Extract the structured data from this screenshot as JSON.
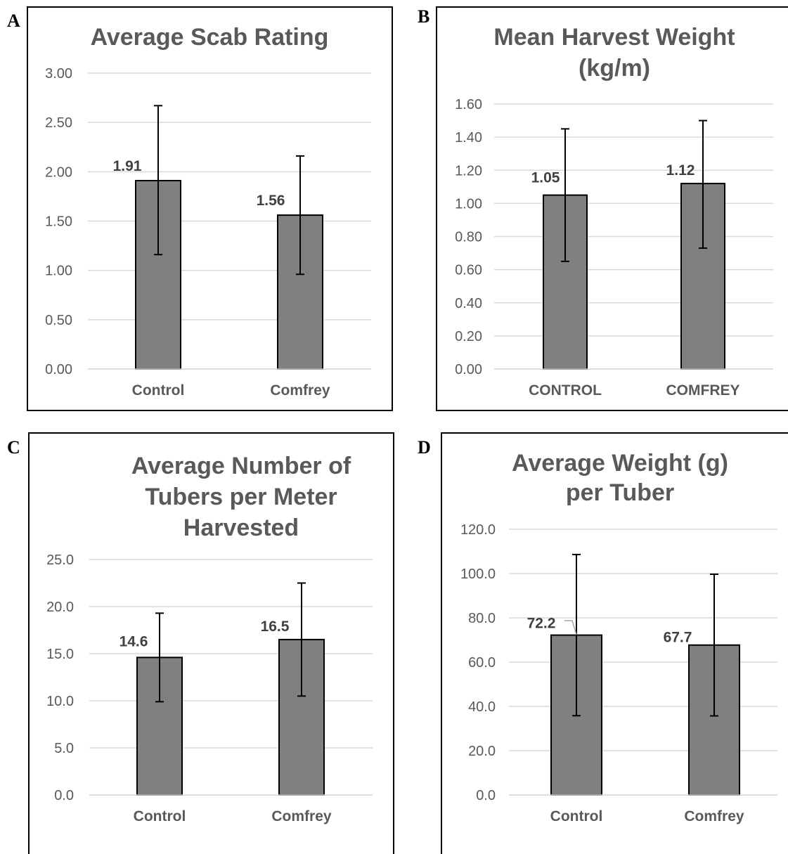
{
  "panels": [
    {
      "letter": "A"
    },
    {
      "letter": "B"
    },
    {
      "letter": "C"
    },
    {
      "letter": "D"
    }
  ],
  "colors": {
    "bar_fill": "#808080",
    "bar_stroke": "#000000",
    "grid": "#d9d9d9",
    "text": "#595959",
    "value_label": "#404040"
  },
  "chart_data": [
    {
      "type": "bar",
      "panel": "A",
      "title_lines": [
        "Average Scab Rating"
      ],
      "categories": [
        "Control",
        "Comfrey"
      ],
      "values": [
        1.91,
        1.56
      ],
      "error_low": [
        1.16,
        0.96
      ],
      "error_high": [
        2.67,
        2.16
      ],
      "value_labels": [
        "1.91",
        "1.56"
      ],
      "yticks": [
        "0.00",
        "0.50",
        "1.00",
        "1.50",
        "2.00",
        "2.50",
        "3.00"
      ],
      "ylim": [
        0,
        3
      ],
      "grid": true,
      "legend": "none"
    },
    {
      "type": "bar",
      "panel": "B",
      "title_lines": [
        "Mean Harvest Weight",
        "(kg/m)"
      ],
      "categories": [
        "CONTROL",
        "COMFREY"
      ],
      "values": [
        1.05,
        1.12
      ],
      "error_low": [
        0.65,
        0.73
      ],
      "error_high": [
        1.45,
        1.5
      ],
      "value_labels": [
        "1.05",
        "1.12"
      ],
      "yticks": [
        "0.00",
        "0.20",
        "0.40",
        "0.60",
        "0.80",
        "1.00",
        "1.20",
        "1.40",
        "1.60"
      ],
      "ylim": [
        0,
        1.6
      ],
      "grid": true,
      "legend": "none"
    },
    {
      "type": "bar",
      "panel": "C",
      "title_lines": [
        "Average Number of",
        "Tubers per Meter",
        "Harvested"
      ],
      "categories": [
        "Control",
        "Comfrey"
      ],
      "values": [
        14.6,
        16.5
      ],
      "error_low": [
        9.9,
        10.5
      ],
      "error_high": [
        19.3,
        22.5
      ],
      "value_labels": [
        "14.6",
        "16.5"
      ],
      "yticks": [
        "0.0",
        "5.0",
        "10.0",
        "15.0",
        "20.0",
        "25.0"
      ],
      "ylim": [
        0,
        25
      ],
      "grid": true,
      "legend": "none"
    },
    {
      "type": "bar",
      "panel": "D",
      "title_lines": [
        "Average Weight (g)",
        "per Tuber"
      ],
      "categories": [
        "Control",
        "Comfrey"
      ],
      "values": [
        72.2,
        67.7
      ],
      "error_low": [
        35.8,
        35.7
      ],
      "error_high": [
        108.6,
        99.7
      ],
      "value_labels": [
        "72.2",
        "67.7"
      ],
      "yticks": [
        "0.0",
        "20.0",
        "40.0",
        "60.0",
        "80.0",
        "100.0",
        "120.0"
      ],
      "ylim": [
        0,
        120
      ],
      "grid": true,
      "legend": "none"
    }
  ]
}
